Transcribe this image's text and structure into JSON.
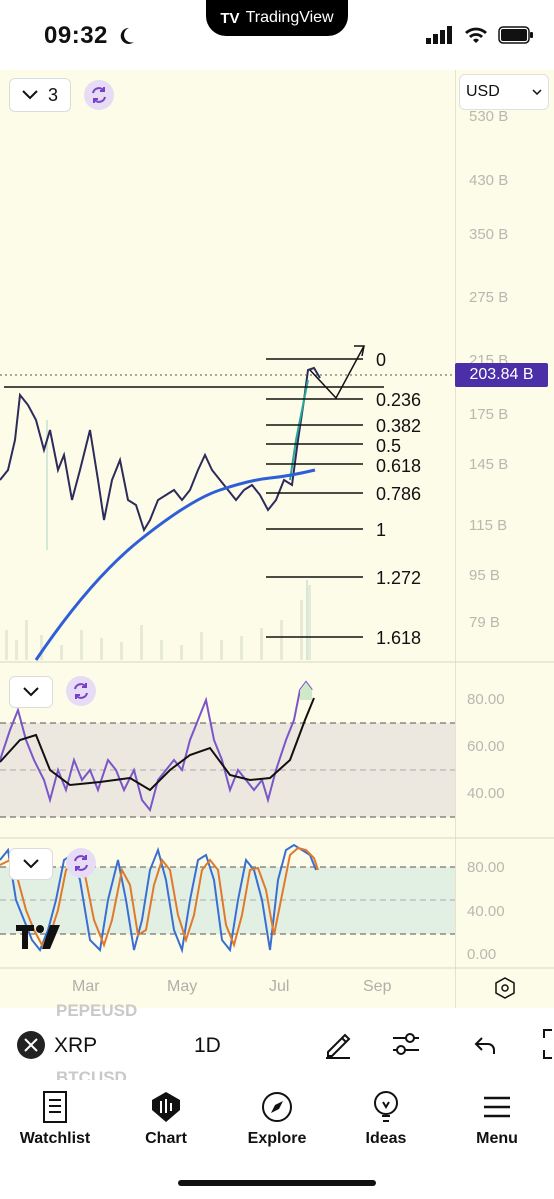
{
  "status_bar": {
    "time": "09:32",
    "island_text": "TradingView"
  },
  "toolbar_top": {
    "indicator_count": "3",
    "currency": "USD"
  },
  "price_axis": {
    "labels": [
      "530 B",
      "430 B",
      "350 B",
      "275 B",
      "215 B",
      "175 B",
      "145 B",
      "115 B",
      "95 B",
      "79 B"
    ],
    "current_price": "203.84 B"
  },
  "fib_levels": [
    "0",
    "0.236",
    "0.382",
    "0.5",
    "0.618",
    "0.786",
    "1",
    "1.272",
    "1.618"
  ],
  "rsi_axis": [
    "80.00",
    "60.00",
    "40.00"
  ],
  "stoch_axis": [
    "80.00",
    "40.00",
    "0.00"
  ],
  "time_axis": [
    "Mar",
    "May",
    "Jul",
    "Sep"
  ],
  "symbol_bar": {
    "symbol": "XRP",
    "interval": "1D",
    "ghost_above": "PEPEUSD",
    "ghost_below": "BTCUSD"
  },
  "tabs": [
    {
      "label": "Watchlist",
      "icon": "watchlist-icon"
    },
    {
      "label": "Chart",
      "icon": "chart-icon"
    },
    {
      "label": "Explore",
      "icon": "explore-icon"
    },
    {
      "label": "Ideas",
      "icon": "ideas-icon"
    },
    {
      "label": "Menu",
      "icon": "menu-icon"
    }
  ],
  "colors": {
    "accent": "#4a2fa8",
    "ma_line": "#2f5fd6",
    "rsi_line": "#7a56c8",
    "stoch_k": "#3a6fd0",
    "stoch_d": "#e07a2a"
  }
}
